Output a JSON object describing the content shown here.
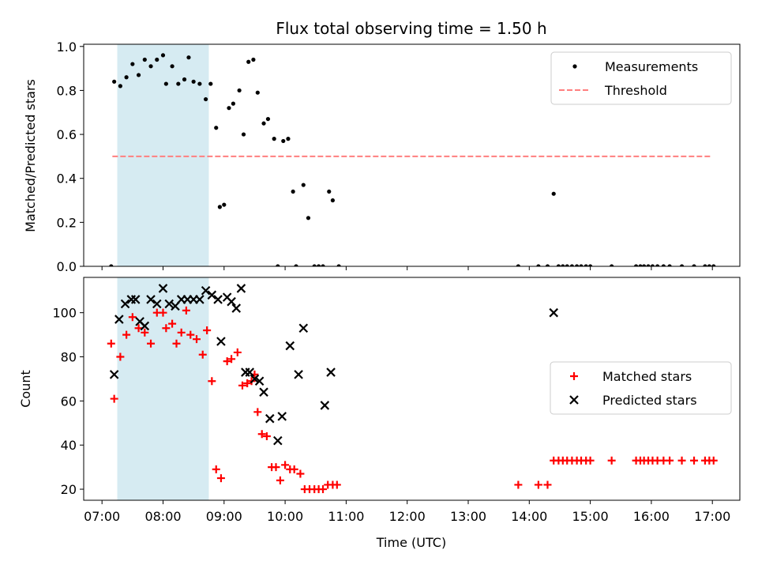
{
  "chart_data": [
    {
      "type": "scatter",
      "title": "Flux total observing time = 1.50 h",
      "xlabel": "",
      "ylabel": "Matched/Predicted stars",
      "xlim": [
        6.7,
        17.45
      ],
      "ylim": [
        0,
        1.01
      ],
      "yticks": [
        "0.0",
        "0.2",
        "0.4",
        "0.6",
        "0.8",
        "1.0"
      ],
      "shaded_region": {
        "x_start": 7.25,
        "x_end": 8.75,
        "color": "#add8e6"
      },
      "threshold": {
        "name": "Threshold",
        "value": 0.5,
        "x_start": 7.17,
        "x_end": 17.0,
        "color": "#ff7f7f"
      },
      "legend": {
        "position": "upper right",
        "entries": [
          "Measurements",
          "Threshold"
        ]
      },
      "series": [
        {
          "name": "Measurements",
          "marker": "dot",
          "color": "#000000",
          "points": [
            [
              7.15,
              0.0
            ],
            [
              7.2,
              0.84
            ],
            [
              7.3,
              0.82
            ],
            [
              7.4,
              0.86
            ],
            [
              7.5,
              0.92
            ],
            [
              7.6,
              0.87
            ],
            [
              7.7,
              0.94
            ],
            [
              7.8,
              0.91
            ],
            [
              7.9,
              0.94
            ],
            [
              8.0,
              0.96
            ],
            [
              8.05,
              0.83
            ],
            [
              8.15,
              0.91
            ],
            [
              8.25,
              0.83
            ],
            [
              8.35,
              0.85
            ],
            [
              8.42,
              0.95
            ],
            [
              8.5,
              0.84
            ],
            [
              8.6,
              0.83
            ],
            [
              8.7,
              0.76
            ],
            [
              8.78,
              0.83
            ],
            [
              8.87,
              0.63
            ],
            [
              8.93,
              0.27
            ],
            [
              9.0,
              0.28
            ],
            [
              9.08,
              0.72
            ],
            [
              9.15,
              0.74
            ],
            [
              9.25,
              0.8
            ],
            [
              9.32,
              0.6
            ],
            [
              9.4,
              0.93
            ],
            [
              9.48,
              0.94
            ],
            [
              9.55,
              0.79
            ],
            [
              9.65,
              0.65
            ],
            [
              9.72,
              0.67
            ],
            [
              9.82,
              0.58
            ],
            [
              9.88,
              0.0
            ],
            [
              9.97,
              0.57
            ],
            [
              10.05,
              0.58
            ],
            [
              10.13,
              0.34
            ],
            [
              10.18,
              0.0
            ],
            [
              10.3,
              0.37
            ],
            [
              10.38,
              0.22
            ],
            [
              10.48,
              0.0
            ],
            [
              10.55,
              0.0
            ],
            [
              10.62,
              0.0
            ],
            [
              10.72,
              0.34
            ],
            [
              10.78,
              0.3
            ],
            [
              10.88,
              0.0
            ],
            [
              13.82,
              0.0
            ],
            [
              14.15,
              0.0
            ],
            [
              14.3,
              0.0
            ],
            [
              14.4,
              0.33
            ],
            [
              14.48,
              0.0
            ],
            [
              14.55,
              0.0
            ],
            [
              14.62,
              0.0
            ],
            [
              14.7,
              0.0
            ],
            [
              14.78,
              0.0
            ],
            [
              14.85,
              0.0
            ],
            [
              14.93,
              0.0
            ],
            [
              15.0,
              0.0
            ],
            [
              15.35,
              0.0
            ],
            [
              15.75,
              0.0
            ],
            [
              15.82,
              0.0
            ],
            [
              15.88,
              0.0
            ],
            [
              15.95,
              0.0
            ],
            [
              16.02,
              0.0
            ],
            [
              16.1,
              0.0
            ],
            [
              16.2,
              0.0
            ],
            [
              16.3,
              0.0
            ],
            [
              16.5,
              0.0
            ],
            [
              16.7,
              0.0
            ],
            [
              16.88,
              0.0
            ],
            [
              16.95,
              0.0
            ],
            [
              17.02,
              0.0
            ]
          ]
        }
      ]
    },
    {
      "type": "scatter",
      "title": "",
      "xlabel": "Time (UTC)",
      "ylabel": "Count",
      "xlim": [
        6.7,
        17.45
      ],
      "ylim": [
        15,
        116
      ],
      "yticks": [
        "20",
        "40",
        "60",
        "80",
        "100"
      ],
      "xticks": [
        "07:00",
        "08:00",
        "09:00",
        "10:00",
        "11:00",
        "12:00",
        "13:00",
        "14:00",
        "15:00",
        "16:00",
        "17:00"
      ],
      "shaded_region": {
        "x_start": 7.25,
        "x_end": 8.75,
        "color": "#add8e6"
      },
      "legend": {
        "position": "center right",
        "entries": [
          "Matched stars",
          "Predicted stars"
        ]
      },
      "series": [
        {
          "name": "Matched stars",
          "marker": "plus",
          "color": "#ff0000",
          "points": [
            [
              7.15,
              86
            ],
            [
              7.2,
              61
            ],
            [
              7.3,
              80
            ],
            [
              7.4,
              90
            ],
            [
              7.5,
              98
            ],
            [
              7.6,
              93
            ],
            [
              7.7,
              91
            ],
            [
              7.8,
              86
            ],
            [
              7.9,
              100
            ],
            [
              8.0,
              100
            ],
            [
              8.05,
              93
            ],
            [
              8.15,
              95
            ],
            [
              8.22,
              86
            ],
            [
              8.3,
              91
            ],
            [
              8.38,
              101
            ],
            [
              8.45,
              90
            ],
            [
              8.55,
              88
            ],
            [
              8.65,
              81
            ],
            [
              8.72,
              92
            ],
            [
              8.8,
              69
            ],
            [
              8.87,
              29
            ],
            [
              8.95,
              25
            ],
            [
              9.05,
              78
            ],
            [
              9.12,
              79
            ],
            [
              9.22,
              82
            ],
            [
              9.3,
              67
            ],
            [
              9.38,
              68
            ],
            [
              9.45,
              69
            ],
            [
              9.5,
              72
            ],
            [
              9.55,
              55
            ],
            [
              9.62,
              45
            ],
            [
              9.7,
              44
            ],
            [
              9.78,
              30
            ],
            [
              9.85,
              30
            ],
            [
              9.92,
              24
            ],
            [
              10.0,
              31
            ],
            [
              10.08,
              29
            ],
            [
              10.15,
              29
            ],
            [
              10.25,
              27
            ],
            [
              10.32,
              20
            ],
            [
              10.4,
              20
            ],
            [
              10.48,
              20
            ],
            [
              10.55,
              20
            ],
            [
              10.62,
              20
            ],
            [
              10.7,
              22
            ],
            [
              10.78,
              22
            ],
            [
              10.85,
              22
            ],
            [
              13.82,
              22
            ],
            [
              14.15,
              22
            ],
            [
              14.3,
              22
            ],
            [
              14.4,
              33
            ],
            [
              14.48,
              33
            ],
            [
              14.55,
              33
            ],
            [
              14.62,
              33
            ],
            [
              14.7,
              33
            ],
            [
              14.78,
              33
            ],
            [
              14.85,
              33
            ],
            [
              14.93,
              33
            ],
            [
              15.0,
              33
            ],
            [
              15.35,
              33
            ],
            [
              15.75,
              33
            ],
            [
              15.82,
              33
            ],
            [
              15.88,
              33
            ],
            [
              15.95,
              33
            ],
            [
              16.02,
              33
            ],
            [
              16.1,
              33
            ],
            [
              16.2,
              33
            ],
            [
              16.3,
              33
            ],
            [
              16.5,
              33
            ],
            [
              16.7,
              33
            ],
            [
              16.88,
              33
            ],
            [
              16.95,
              33
            ],
            [
              17.02,
              33
            ]
          ]
        },
        {
          "name": "Predicted stars",
          "marker": "x",
          "color": "#000000",
          "points": [
            [
              7.2,
              72
            ],
            [
              7.28,
              97
            ],
            [
              7.38,
              104
            ],
            [
              7.48,
              106
            ],
            [
              7.55,
              106
            ],
            [
              7.62,
              96
            ],
            [
              7.7,
              94
            ],
            [
              7.8,
              106
            ],
            [
              7.9,
              104
            ],
            [
              8.0,
              111
            ],
            [
              8.1,
              104
            ],
            [
              8.2,
              103
            ],
            [
              8.3,
              106
            ],
            [
              8.4,
              106
            ],
            [
              8.5,
              106
            ],
            [
              8.6,
              106
            ],
            [
              8.7,
              110
            ],
            [
              8.8,
              108
            ],
            [
              8.9,
              106
            ],
            [
              8.95,
              87
            ],
            [
              9.05,
              107
            ],
            [
              9.12,
              105
            ],
            [
              9.2,
              102
            ],
            [
              9.28,
              111
            ],
            [
              9.35,
              73
            ],
            [
              9.42,
              73
            ],
            [
              9.5,
              70
            ],
            [
              9.58,
              69
            ],
            [
              9.65,
              64
            ],
            [
              9.75,
              52
            ],
            [
              9.88,
              42
            ],
            [
              9.95,
              53
            ],
            [
              10.08,
              85
            ],
            [
              10.22,
              72
            ],
            [
              10.3,
              93
            ],
            [
              10.65,
              58
            ],
            [
              10.75,
              73
            ],
            [
              14.4,
              100
            ]
          ]
        }
      ]
    }
  ]
}
